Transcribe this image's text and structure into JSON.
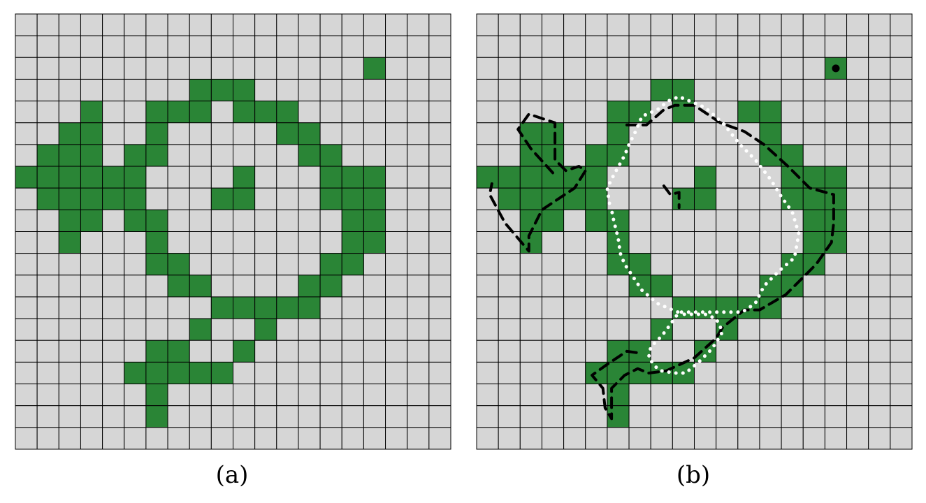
{
  "figure": {
    "grid_size": 20,
    "colors": {
      "background_cell": "#d6d6d6",
      "filled_cell": "#2a8536",
      "grid_line": "#000000",
      "dashed_contour": "#000000",
      "dotted_contour": "#ffffff"
    },
    "panels": [
      {
        "label": "(a)",
        "filled_cells": [
          [
            2,
            16
          ],
          [
            3,
            8
          ],
          [
            3,
            9
          ],
          [
            3,
            10
          ],
          [
            4,
            3
          ],
          [
            4,
            6
          ],
          [
            4,
            7
          ],
          [
            4,
            8
          ],
          [
            4,
            10
          ],
          [
            4,
            11
          ],
          [
            4,
            12
          ],
          [
            5,
            2
          ],
          [
            5,
            3
          ],
          [
            5,
            6
          ],
          [
            5,
            12
          ],
          [
            5,
            13
          ],
          [
            6,
            1
          ],
          [
            6,
            2
          ],
          [
            6,
            3
          ],
          [
            6,
            5
          ],
          [
            6,
            6
          ],
          [
            6,
            13
          ],
          [
            6,
            14
          ],
          [
            7,
            0
          ],
          [
            7,
            1
          ],
          [
            7,
            2
          ],
          [
            7,
            3
          ],
          [
            7,
            4
          ],
          [
            7,
            5
          ],
          [
            7,
            10
          ],
          [
            7,
            14
          ],
          [
            7,
            15
          ],
          [
            7,
            16
          ],
          [
            8,
            1
          ],
          [
            8,
            2
          ],
          [
            8,
            3
          ],
          [
            8,
            4
          ],
          [
            8,
            5
          ],
          [
            8,
            9
          ],
          [
            8,
            10
          ],
          [
            8,
            14
          ],
          [
            8,
            15
          ],
          [
            8,
            16
          ],
          [
            9,
            2
          ],
          [
            9,
            3
          ],
          [
            9,
            5
          ],
          [
            9,
            6
          ],
          [
            9,
            15
          ],
          [
            9,
            16
          ],
          [
            10,
            2
          ],
          [
            10,
            6
          ],
          [
            10,
            15
          ],
          [
            10,
            16
          ],
          [
            11,
            6
          ],
          [
            11,
            7
          ],
          [
            11,
            14
          ],
          [
            11,
            15
          ],
          [
            12,
            7
          ],
          [
            12,
            8
          ],
          [
            12,
            13
          ],
          [
            12,
            14
          ],
          [
            13,
            9
          ],
          [
            13,
            10
          ],
          [
            13,
            11
          ],
          [
            13,
            12
          ],
          [
            13,
            13
          ],
          [
            14,
            8
          ],
          [
            14,
            11
          ],
          [
            15,
            6
          ],
          [
            15,
            7
          ],
          [
            15,
            10
          ],
          [
            16,
            5
          ],
          [
            16,
            6
          ],
          [
            16,
            7
          ],
          [
            16,
            8
          ],
          [
            16,
            9
          ],
          [
            17,
            6
          ],
          [
            18,
            6
          ]
        ]
      },
      {
        "label": "(b)",
        "filled_cells": [
          [
            2,
            16
          ],
          [
            3,
            8
          ],
          [
            3,
            9
          ],
          [
            4,
            6
          ],
          [
            4,
            7
          ],
          [
            4,
            9
          ],
          [
            4,
            12
          ],
          [
            4,
            13
          ],
          [
            5,
            2
          ],
          [
            5,
            3
          ],
          [
            5,
            6
          ],
          [
            5,
            13
          ],
          [
            6,
            2
          ],
          [
            6,
            3
          ],
          [
            6,
            5
          ],
          [
            6,
            6
          ],
          [
            6,
            13
          ],
          [
            6,
            14
          ],
          [
            7,
            0
          ],
          [
            7,
            1
          ],
          [
            7,
            2
          ],
          [
            7,
            3
          ],
          [
            7,
            4
          ],
          [
            7,
            5
          ],
          [
            7,
            10
          ],
          [
            7,
            14
          ],
          [
            7,
            15
          ],
          [
            7,
            16
          ],
          [
            8,
            1
          ],
          [
            8,
            2
          ],
          [
            8,
            3
          ],
          [
            8,
            4
          ],
          [
            8,
            5
          ],
          [
            8,
            9
          ],
          [
            8,
            10
          ],
          [
            8,
            14
          ],
          [
            8,
            15
          ],
          [
            8,
            16
          ],
          [
            9,
            2
          ],
          [
            9,
            3
          ],
          [
            9,
            5
          ],
          [
            9,
            6
          ],
          [
            9,
            15
          ],
          [
            9,
            16
          ],
          [
            10,
            2
          ],
          [
            10,
            6
          ],
          [
            10,
            15
          ],
          [
            10,
            16
          ],
          [
            11,
            6
          ],
          [
            11,
            7
          ],
          [
            11,
            14
          ],
          [
            11,
            15
          ],
          [
            12,
            7
          ],
          [
            12,
            8
          ],
          [
            12,
            13
          ],
          [
            12,
            14
          ],
          [
            13,
            9
          ],
          [
            13,
            10
          ],
          [
            13,
            11
          ],
          [
            13,
            12
          ],
          [
            13,
            13
          ],
          [
            14,
            8
          ],
          [
            14,
            11
          ],
          [
            15,
            6
          ],
          [
            15,
            7
          ],
          [
            15,
            10
          ],
          [
            16,
            5
          ],
          [
            16,
            6
          ],
          [
            16,
            7
          ],
          [
            16,
            8
          ],
          [
            16,
            9
          ],
          [
            17,
            6
          ],
          [
            18,
            6
          ]
        ],
        "dashed_contours": [
          [
            [
              3.5,
              7.3
            ],
            [
              2.5,
              6.2
            ],
            [
              1.9,
              5.3
            ],
            [
              2.4,
              4.6
            ],
            [
              3.6,
              5.0
            ],
            [
              3.6,
              6.7
            ],
            [
              4.1,
              7.2
            ],
            [
              4.7,
              7.0
            ],
            [
              5.0,
              7.2
            ],
            [
              4.5,
              8.0
            ],
            [
              3.6,
              8.6
            ],
            [
              3.0,
              9.0
            ],
            [
              2.4,
              10.2
            ],
            [
              2.4,
              10.9
            ],
            [
              1.3,
              9.6
            ],
            [
              0.6,
              8.3
            ],
            [
              0.7,
              7.8
            ]
          ],
          [
            [
              6.9,
              5.1
            ],
            [
              7.8,
              5.1
            ],
            [
              8.6,
              4.4
            ],
            [
              9.1,
              4.2
            ],
            [
              10.0,
              4.2
            ],
            [
              11.2,
              5.0
            ],
            [
              12.3,
              5.4
            ],
            [
              13.2,
              6.0
            ],
            [
              14.3,
              7.0
            ],
            [
              15.3,
              8.0
            ],
            [
              16.4,
              8.3
            ],
            [
              16.4,
              9.6
            ],
            [
              16.3,
              10.5
            ],
            [
              15.6,
              11.5
            ],
            [
              15.0,
              12.1
            ],
            [
              14.2,
              12.9
            ],
            [
              13.0,
              13.6
            ],
            [
              12.3,
              13.6
            ],
            [
              11.3,
              14.4
            ],
            [
              11.0,
              14.9
            ],
            [
              10.0,
              15.8
            ],
            [
              8.7,
              16.4
            ],
            [
              7.9,
              16.5
            ],
            [
              7.4,
              16.3
            ],
            [
              6.8,
              16.6
            ],
            [
              6.2,
              17.2
            ],
            [
              6.2,
              18.6
            ],
            [
              5.9,
              18.1
            ],
            [
              5.8,
              17.2
            ],
            [
              5.3,
              16.6
            ],
            [
              6.0,
              16.1
            ],
            [
              6.9,
              15.5
            ],
            [
              7.6,
              15.6
            ]
          ],
          [
            [
              8.6,
              7.9
            ],
            [
              8.9,
              8.3
            ],
            [
              9.3,
              8.2
            ],
            [
              9.3,
              8.9
            ]
          ]
        ],
        "dotted_contours": [
          [
            [
              6.1,
              8.7
            ],
            [
              6.0,
              8.0
            ],
            [
              6.3,
              7.4
            ],
            [
              6.8,
              6.5
            ],
            [
              7.0,
              6.0
            ],
            [
              7.3,
              5.4
            ],
            [
              7.6,
              4.7
            ],
            [
              8.3,
              4.4
            ],
            [
              8.8,
              4.0
            ],
            [
              9.3,
              3.8
            ],
            [
              10.5,
              4.3
            ],
            [
              11.3,
              5.0
            ],
            [
              12.1,
              6.0
            ],
            [
              12.8,
              6.7
            ],
            [
              13.5,
              7.6
            ],
            [
              14.0,
              8.4
            ],
            [
              14.5,
              9.1
            ],
            [
              14.8,
              10.1
            ],
            [
              14.6,
              11.2
            ],
            [
              13.9,
              11.8
            ],
            [
              13.2,
              12.5
            ],
            [
              12.8,
              13.3
            ],
            [
              12.2,
              13.7
            ],
            [
              11.0,
              13.7
            ],
            [
              10.5,
              13.7
            ],
            [
              10.0,
              13.7
            ],
            [
              9.3,
              13.7
            ],
            [
              8.8,
              14.4
            ],
            [
              8.5,
              14.8
            ],
            [
              8.0,
              15.3
            ],
            [
              7.9,
              15.8
            ],
            [
              8.3,
              16.3
            ],
            [
              8.5,
              16.4
            ],
            [
              9.1,
              16.5
            ],
            [
              9.6,
              16.5
            ],
            [
              10.2,
              16.0
            ],
            [
              10.8,
              15.4
            ],
            [
              11.0,
              15.1
            ],
            [
              11.3,
              14.6
            ],
            [
              11.0,
              14.0
            ],
            [
              10.5,
              13.8
            ],
            [
              9.5,
              13.8
            ],
            [
              9.0,
              13.6
            ],
            [
              8.3,
              13.3
            ],
            [
              7.6,
              12.7
            ],
            [
              7.2,
              12.1
            ],
            [
              6.8,
              11.5
            ],
            [
              6.6,
              11.0
            ],
            [
              6.5,
              10.3
            ],
            [
              6.3,
              9.5
            ],
            [
              6.2,
              9.0
            ]
          ]
        ],
        "dot_markers": [
          [
            16.5,
            2.5
          ]
        ]
      }
    ]
  }
}
